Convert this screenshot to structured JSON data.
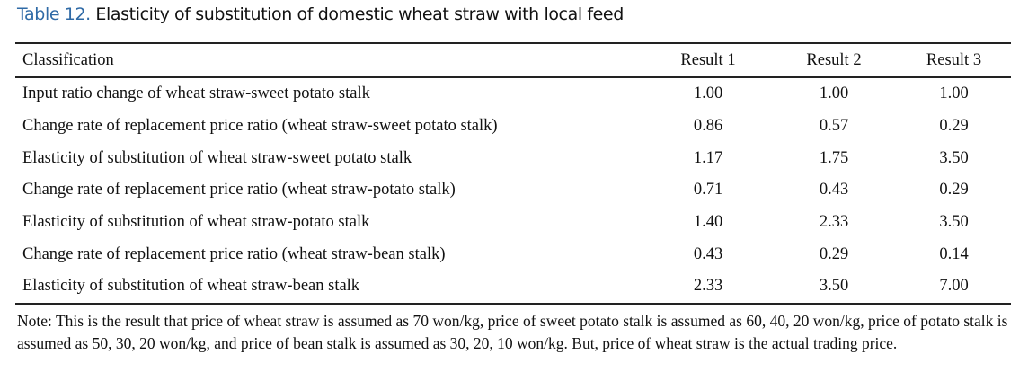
{
  "title": {
    "number": "Table 12.",
    "text": " Elasticity of substitution of domestic wheat straw with local feed",
    "accent": "#2f6aa6"
  },
  "headers": [
    "Classification",
    "Result 1",
    "Result 2",
    "Result 3"
  ],
  "rows": [
    [
      "Input ratio change of wheat straw-sweet potato stalk",
      "1.00",
      "1.00",
      "1.00"
    ],
    [
      "Change rate of replacement price ratio (wheat straw-sweet potato stalk)",
      "0.86",
      "0.57",
      "0.29"
    ],
    [
      "Elasticity of substitution of wheat straw-sweet potato stalk",
      "1.17",
      "1.75",
      "3.50"
    ],
    [
      "Change rate of replacement price ratio (wheat straw-potato stalk)",
      "0.71",
      "0.43",
      "0.29"
    ],
    [
      "Elasticity of substitution of wheat straw-potato stalk",
      "1.40",
      "2.33",
      "3.50"
    ],
    [
      "Change rate of replacement price ratio (wheat straw-bean stalk)",
      "0.43",
      "0.29",
      "0.14"
    ],
    [
      "Elasticity of substitution of wheat straw-bean stalk",
      "2.33",
      "3.50",
      "7.00"
    ]
  ],
  "note": "Note: This is the result that price of wheat straw is assumed as 70 won/kg, price of sweet potato stalk is assumed as 60, 40, 20 won/kg, price of potato stalk is assumed as 50, 30, 20 won/kg, and price of bean stalk is assumed as 30, 20, 10 won/kg. But, price of wheat straw is the actual trading price."
}
